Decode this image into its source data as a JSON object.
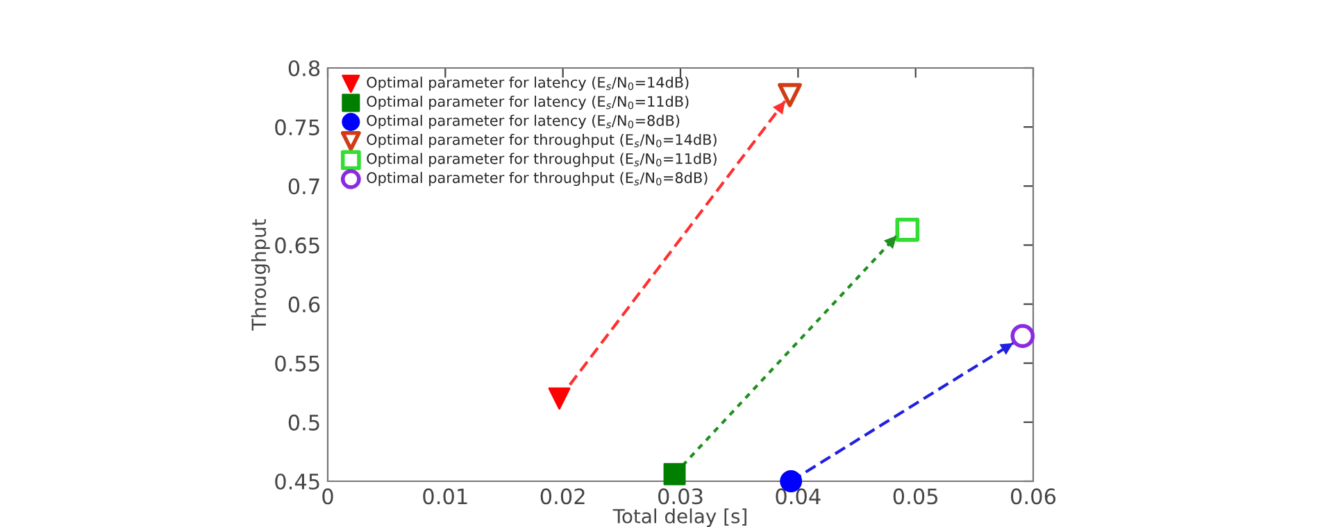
{
  "chart_data": {
    "type": "scatter",
    "xlabel": "Total delay [s]",
    "ylabel": "Throughput",
    "xlim": [
      0,
      0.06
    ],
    "ylim": [
      0.45,
      0.8
    ],
    "xticks": [
      0,
      0.01,
      0.02,
      0.03,
      0.04,
      0.05,
      0.06
    ],
    "yticks": [
      0.45,
      0.5,
      0.55,
      0.6,
      0.65,
      0.7,
      0.75,
      0.8
    ],
    "grid": false,
    "legend": "top left",
    "series": [
      {
        "name": "Optimal parameter for latency (E$_{s}$/N$_{0}$=14dB)",
        "color": "#ff0000",
        "x": [
          0.0197
        ],
        "values": [
          0.52
        ],
        "marker": "triangle"
      },
      {
        "name": "Optimal parameter for latency (E$_{s}$/N$_{0}$=11dB)",
        "color": "#007f00",
        "x": [
          0.0295
        ],
        "values": [
          0.456
        ],
        "marker": "square"
      },
      {
        "name": "Optimal parameter for latency (E$_{s}$/N$_{0}$=8dB)",
        "color": "#0000ff",
        "x": [
          0.0394
        ],
        "values": [
          0.45
        ],
        "marker": "circle"
      },
      {
        "name": "Optimal parameter for throughput (E$_{s}$/N$_{0}$=14dB)",
        "color": "#d23c14",
        "x": [
          0.0393
        ],
        "values": [
          0.777
        ],
        "marker": "triangle"
      },
      {
        "name": "Optimal parameter for throughput (E$_{s}$/N$_{0}$=11dB)",
        "color": "#33dd33",
        "x": [
          0.0493
        ],
        "values": [
          0.663
        ],
        "marker": "square"
      },
      {
        "name": "Optimal parameter for throughput (E$_{s}$/N$_{0}$=8dB)",
        "color": "#8a2be2",
        "x": [
          0.0591
        ],
        "values": [
          0.573
        ],
        "marker": "circle"
      },
      {
        "type": "line",
        "color": "#ff3030",
        "x": [
          0.0197,
          0.0389
        ],
        "values": [
          0.52,
          0.772
        ],
        "line_style": "dashed"
      },
      {
        "type": "line",
        "color": "#1f8f1f",
        "x": [
          0.0295,
          0.0484
        ],
        "values": [
          0.456,
          0.658
        ],
        "line_style": "dotted"
      },
      {
        "type": "line",
        "color": "#2020e0",
        "x": [
          0.0394,
          0.0583
        ],
        "values": [
          0.45,
          0.567
        ],
        "line_style": "dashed"
      }
    ]
  }
}
